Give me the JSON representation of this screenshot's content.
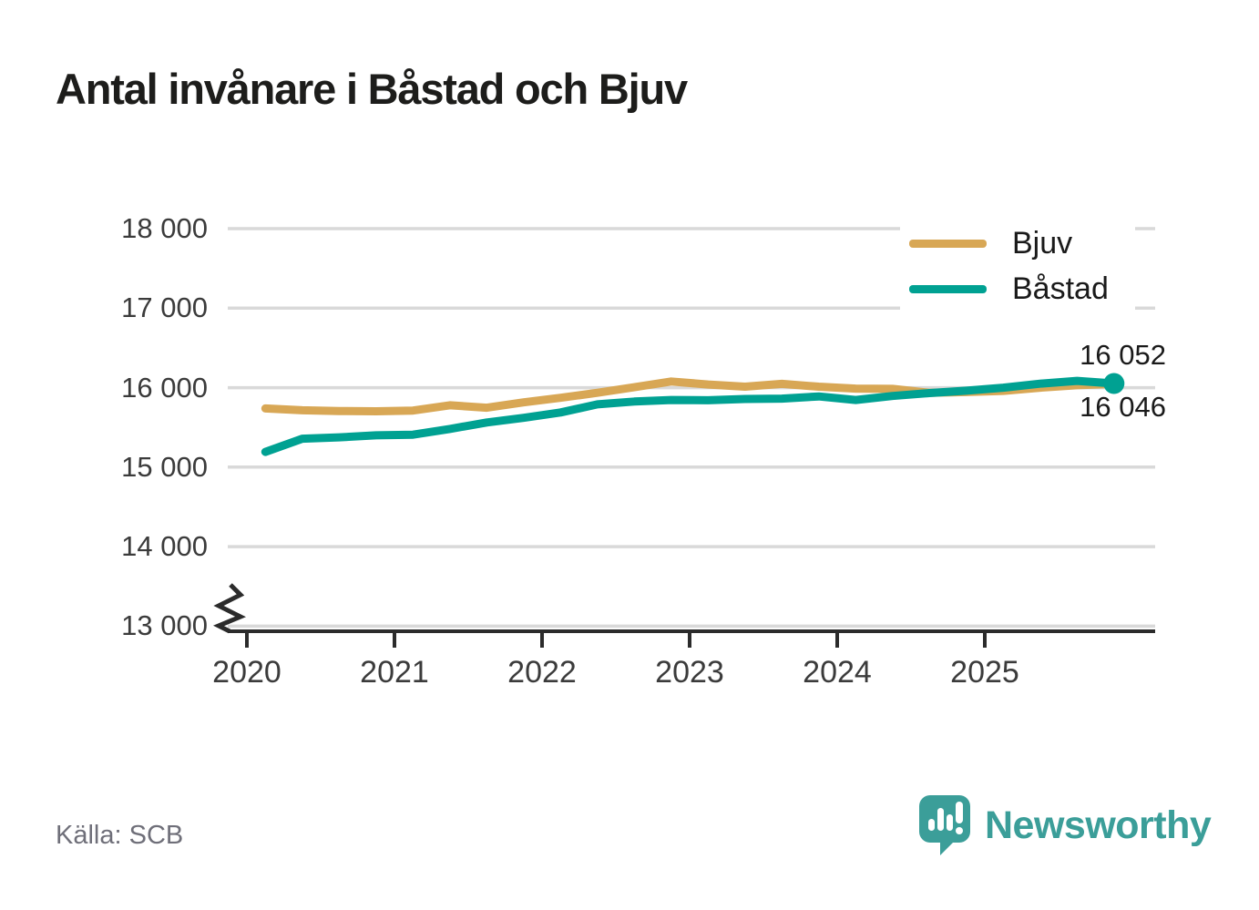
{
  "title": "Antal invånare i Båstad och Bjuv",
  "source": "Källa: SCB",
  "brand": {
    "name": "Newsworthy",
    "color": "#3B9E99",
    "icon": "newsworthy-speech-bubble-bar-chart-icon"
  },
  "colors": {
    "background": "#FFFFFF",
    "grid": "#D9D9D9",
    "axis": "#2B2B2B",
    "title_text": "#1D1D1B",
    "tick_text": "#3B3B3B",
    "source_text": "#6F6F79",
    "bjuv_line": "#D8A755",
    "bastad_line": "#00A192"
  },
  "chart_data": {
    "type": "line",
    "title": "Antal invånare i Båstad och Bjuv",
    "xlabel": "",
    "ylabel": "",
    "grid": "horizontal",
    "legend_position": "top-right",
    "ylim": [
      13000,
      18000
    ],
    "y_axis_break": true,
    "yticks": [
      13000,
      14000,
      15000,
      16000,
      17000,
      18000
    ],
    "ytick_labels": [
      "13 000",
      "14 000",
      "15 000",
      "16 000",
      "17 000",
      "18 000"
    ],
    "xticks": [
      2020,
      2021,
      2022,
      2023,
      2024,
      2025
    ],
    "xtick_labels": [
      "2020",
      "2021",
      "2022",
      "2023",
      "2024",
      "2025"
    ],
    "x_unit": "decimal_year_quarterly",
    "x": [
      2020.125,
      2020.375,
      2020.625,
      2020.875,
      2021.125,
      2021.375,
      2021.625,
      2021.875,
      2022.125,
      2022.375,
      2022.625,
      2022.875,
      2023.125,
      2023.375,
      2023.625,
      2023.875,
      2024.125,
      2024.375,
      2024.625,
      2024.875,
      2025.125,
      2025.375,
      2025.625,
      2025.875
    ],
    "series": [
      {
        "id": "bjuv",
        "name": "Bjuv",
        "color": "#D8A755",
        "end_dot": false,
        "values": [
          15738,
          15715,
          15706,
          15703,
          15712,
          15778,
          15748,
          15815,
          15872,
          15935,
          16005,
          16078,
          16040,
          16012,
          16048,
          16012,
          15988,
          15985,
          15935,
          15945,
          15960,
          16000,
          16030,
          16046
        ]
      },
      {
        "id": "bastad",
        "name": "Båstad",
        "color": "#00A192",
        "end_dot": true,
        "values": [
          15192,
          15358,
          15375,
          15400,
          15408,
          15480,
          15562,
          15620,
          15688,
          15790,
          15825,
          15845,
          15842,
          15858,
          15862,
          15890,
          15845,
          15895,
          15932,
          15962,
          16000,
          16050,
          16085,
          16052
        ]
      }
    ],
    "end_annotations": [
      {
        "series": "Båstad",
        "text": "16 052"
      },
      {
        "series": "Bjuv",
        "text": "16 046"
      }
    ]
  }
}
